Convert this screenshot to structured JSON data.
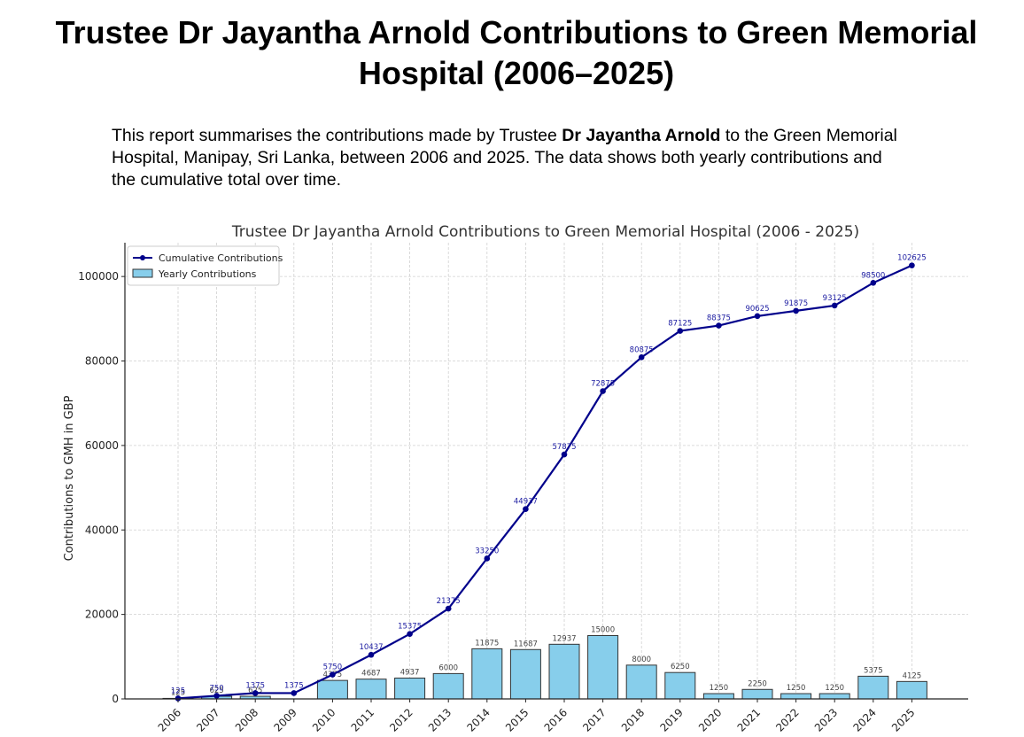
{
  "page": {
    "title": "Trustee Dr Jayantha Arnold Contributions to Green Memorial Hospital (2006–2025)",
    "intro_before": "This report summarises the contributions made by Trustee ",
    "intro_bold": "Dr Jayantha Arnold",
    "intro_after": " to the Green Memorial Hospital, Manipay, Sri Lanka, between 2006 and 2025. The data shows both yearly contributions and the cumulative total over time."
  },
  "chart_data": {
    "type": "bar",
    "title": "Trustee Dr Jayantha Arnold Contributions to Green Memorial Hospital (2006 - 2025)",
    "xlabel": "",
    "ylabel": "Contributions to GMH in GBP",
    "ylim": [
      0,
      108000
    ],
    "yticks": [
      0,
      20000,
      40000,
      60000,
      80000,
      100000
    ],
    "grid": true,
    "legend_position": "top-left",
    "categories": [
      "2006",
      "2007",
      "2008",
      "2009",
      "2010",
      "2011",
      "2012",
      "2013",
      "2014",
      "2015",
      "2016",
      "2017",
      "2018",
      "2019",
      "2020",
      "2021",
      "2022",
      "2023",
      "2024",
      "2025"
    ],
    "series": [
      {
        "name": "Yearly Contributions",
        "type": "bar",
        "color": "#87ceeb",
        "values": [
          125,
          625,
          625,
          0,
          4375,
          4687,
          4937,
          6000,
          11875,
          11687,
          12937,
          15000,
          8000,
          6250,
          1250,
          2250,
          1250,
          1250,
          5375,
          4125
        ]
      },
      {
        "name": "Cumulative Contributions",
        "type": "line",
        "color": "#00008b",
        "values": [
          125,
          750,
          1375,
          1375,
          5750,
          10437,
          15375,
          21375,
          33250,
          44937,
          57875,
          72875,
          80875,
          87125,
          88375,
          90625,
          91875,
          93125,
          98500,
          102625
        ]
      }
    ]
  }
}
